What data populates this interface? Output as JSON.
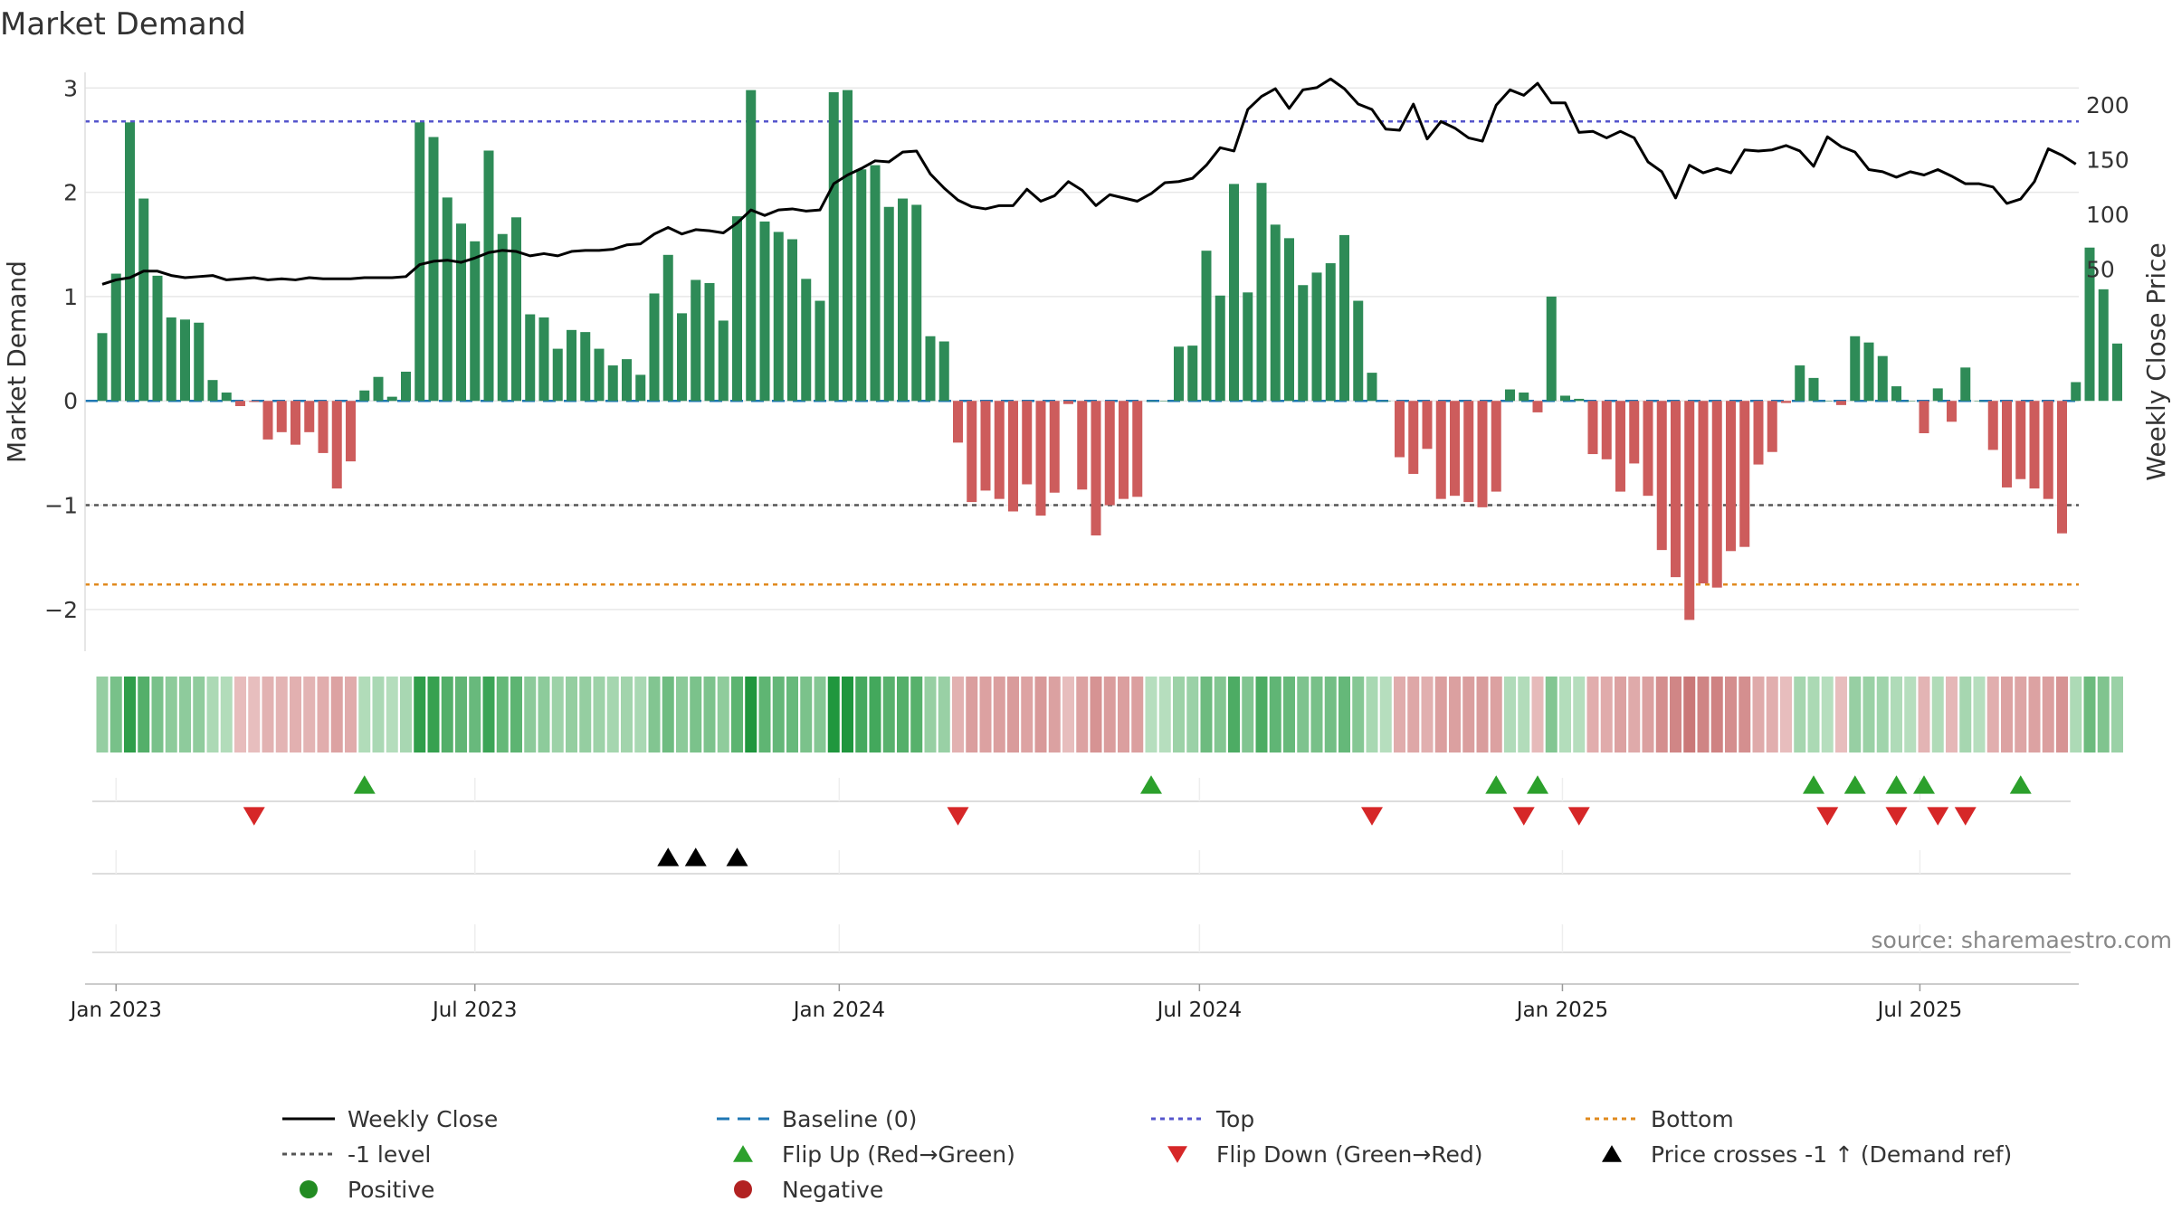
{
  "chart_data": {
    "type": "bar",
    "title": "Market Demand",
    "ylabel": "Market Demand",
    "y2label": "Weekly Close Price",
    "source": "source: sharemaestro.com",
    "ylim": [
      -2.4,
      3.15
    ],
    "y2lim": [
      -300,
      230
    ],
    "yticks": [
      {
        "v": 3,
        "label": "3"
      },
      {
        "v": 2,
        "label": "2"
      },
      {
        "v": 1,
        "label": "1"
      },
      {
        "v": 0,
        "label": "0"
      },
      {
        "v": -1,
        "label": "−1"
      },
      {
        "v": -2,
        "label": "−2"
      }
    ],
    "y2ticks": [
      {
        "v": 200,
        "label": "200"
      },
      {
        "v": 150,
        "label": "150"
      },
      {
        "v": 100,
        "label": "100"
      },
      {
        "v": 50,
        "label": "50"
      }
    ],
    "xticks": [
      {
        "i": 1,
        "label": "Jan 2023"
      },
      {
        "i": 27,
        "label": "Jul 2023"
      },
      {
        "i": 53.4,
        "label": "Jan 2024"
      },
      {
        "i": 79.5,
        "label": "Jul 2024"
      },
      {
        "i": 105.8,
        "label": "Jan 2025"
      },
      {
        "i": 131.7,
        "label": "Jul 2025"
      }
    ],
    "levels": {
      "top": 2.68,
      "minus_one": -1,
      "bottom": -1.76
    },
    "demand": [
      0.65,
      1.22,
      2.67,
      1.94,
      1.2,
      0.8,
      0.78,
      0.75,
      0.2,
      0.08,
      -0.05,
      -0.01,
      -0.37,
      -0.3,
      -0.42,
      -0.3,
      -0.5,
      -0.84,
      -0.58,
      0.1,
      0.23,
      0.04,
      0.28,
      2.67,
      2.53,
      1.95,
      1.7,
      1.53,
      2.4,
      1.6,
      1.76,
      0.83,
      0.8,
      0.5,
      0.68,
      0.66,
      0.5,
      0.34,
      0.4,
      0.25,
      1.03,
      1.4,
      0.84,
      1.16,
      1.13,
      0.77,
      1.77,
      2.98,
      1.72,
      1.62,
      1.55,
      1.17,
      0.96,
      2.96,
      2.98,
      2.22,
      2.26,
      1.86,
      1.94,
      1.88,
      0.62,
      0.57,
      -0.4,
      -0.97,
      -0.86,
      -0.94,
      -1.06,
      -0.8,
      -1.1,
      -0.88,
      -0.03,
      -0.85,
      -1.29,
      -1.0,
      -0.94,
      -0.92,
      0.0,
      0.0,
      0.52,
      0.53,
      1.44,
      1.01,
      2.08,
      1.04,
      2.09,
      1.69,
      1.56,
      1.11,
      1.23,
      1.32,
      1.59,
      0.96,
      0.27,
      0.0,
      -0.54,
      -0.7,
      -0.46,
      -0.94,
      -0.91,
      -0.97,
      -1.02,
      -0.87,
      0.11,
      0.08,
      -0.11,
      1.0,
      0.05,
      0.02,
      -0.51,
      -0.56,
      -0.87,
      -0.6,
      -0.91,
      -1.43,
      -1.69,
      -2.1,
      -1.75,
      -1.79,
      -1.44,
      -1.4,
      -0.61,
      -0.49,
      -0.02,
      0.34,
      0.22,
      0.0,
      -0.04,
      0.62,
      0.56,
      0.43,
      0.14,
      0.0,
      -0.31,
      0.12,
      -0.2,
      0.32,
      0.0,
      -0.47,
      -0.83,
      -0.75,
      -0.84,
      -0.94,
      -1.27,
      0.18,
      1.47,
      1.07,
      0.55
    ],
    "close": [
      36,
      40,
      42,
      48,
      48,
      44,
      42,
      43,
      44,
      40,
      41,
      42,
      40,
      41,
      40,
      42,
      41,
      41,
      41,
      42,
      42,
      42,
      43,
      54,
      57,
      58,
      56,
      60,
      65,
      67,
      66,
      62,
      64,
      62,
      66,
      67,
      67,
      68,
      72,
      73,
      82,
      88,
      82,
      86,
      85,
      83,
      92,
      104,
      99,
      104,
      105,
      103,
      104,
      128,
      136,
      142,
      149,
      148,
      157,
      158,
      137,
      124,
      113,
      107,
      105,
      108,
      108,
      123,
      112,
      117,
      130,
      122,
      108,
      118,
      115,
      112,
      119,
      129,
      130,
      133,
      145,
      161,
      158,
      196,
      208,
      215,
      197,
      214,
      216,
      224,
      215,
      201,
      196,
      178,
      177,
      201,
      169,
      185,
      179,
      170,
      167,
      200,
      214,
      209,
      220,
      202,
      202,
      175,
      176,
      170,
      176,
      170,
      148,
      139,
      115,
      145,
      138,
      142,
      138,
      159,
      158,
      159,
      163,
      158,
      144,
      171,
      162,
      157,
      141,
      139,
      134,
      139,
      136,
      141,
      135,
      128,
      128,
      125,
      110,
      114,
      130,
      160,
      154,
      146
    ],
    "flip_up": [
      19,
      76,
      101,
      104,
      124,
      127,
      130,
      132,
      139
    ],
    "flip_down": [
      11,
      62,
      92,
      103,
      107,
      125,
      130,
      133,
      135
    ],
    "price_cross": [
      41,
      43,
      46
    ],
    "legend": {
      "weekly_close": "Weekly Close",
      "baseline": "Baseline (0)",
      "top": "Top",
      "bottom": "Bottom",
      "minus_one": "-1 level",
      "flip_up": "Flip Up (Red→Green)",
      "flip_down": "Flip Down (Green→Red)",
      "price_cross": "Price crosses -1 ↑ (Demand ref)",
      "positive": "Positive",
      "negative": "Negative"
    },
    "colors": {
      "pos": "#2e8b57",
      "neg": "#cd5c5c",
      "close": "#000000",
      "baseline": "#1f77b4",
      "top": "#5555cc",
      "bottom": "#e08a1e",
      "minus_one": "#555555",
      "flip_up": "#2ca02c",
      "flip_down": "#d62728",
      "cross": "#000000",
      "pos_dot": "#228b22",
      "neg_dot": "#b22222"
    }
  }
}
